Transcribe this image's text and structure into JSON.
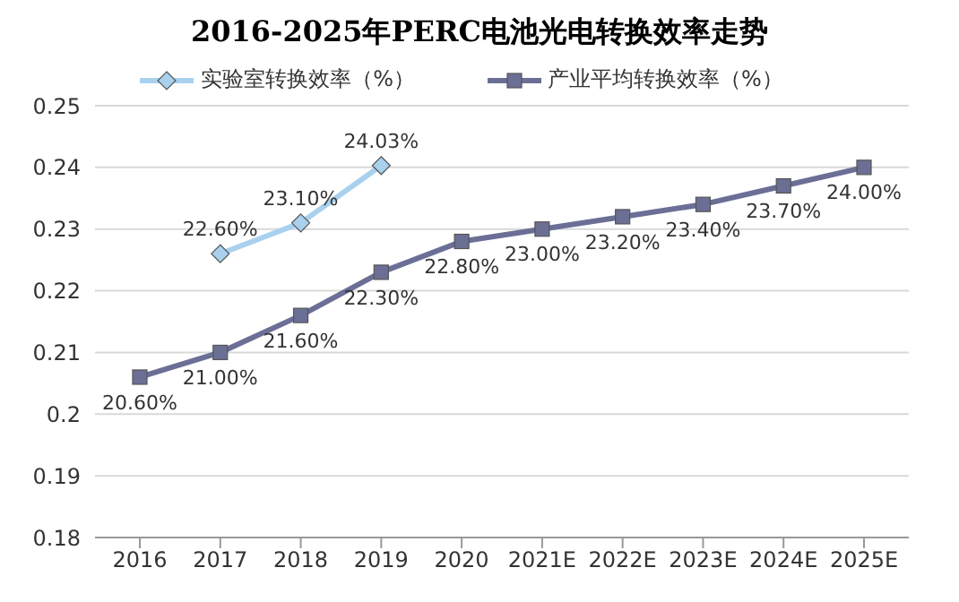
{
  "chart_data": {
    "type": "line",
    "title": "2016-2025年PERC电池光电转换效率走势",
    "categories": [
      "2016",
      "2017",
      "2018",
      "2019",
      "2020",
      "2021E",
      "2022E",
      "2023E",
      "2024E",
      "2025E"
    ],
    "series": [
      {
        "name": "实验室转换效率（%）",
        "color": "#a9d1ee",
        "marker": "diamond",
        "values": [
          null,
          0.226,
          0.231,
          0.2403,
          null,
          null,
          null,
          null,
          null,
          null
        ],
        "value_labels": [
          null,
          "22.60%",
          "23.10%",
          "24.03%",
          null,
          null,
          null,
          null,
          null,
          null
        ]
      },
      {
        "name": "产业平均转换效率（%）",
        "color": "#6b6f96",
        "marker": "square",
        "values": [
          0.206,
          0.21,
          0.216,
          0.223,
          0.228,
          0.23,
          0.232,
          0.234,
          0.237,
          0.24
        ],
        "value_labels": [
          "20.60%",
          "21.00%",
          "21.60%",
          "22.30%",
          "22.80%",
          "23.00%",
          "23.20%",
          "23.40%",
          "23.70%",
          "24.00%"
        ]
      }
    ],
    "ylim": [
      0.18,
      0.25
    ],
    "yticks": [
      0.18,
      0.19,
      0.2,
      0.21,
      0.22,
      0.23,
      0.24,
      0.25
    ],
    "grid": "y",
    "legend": "top"
  }
}
